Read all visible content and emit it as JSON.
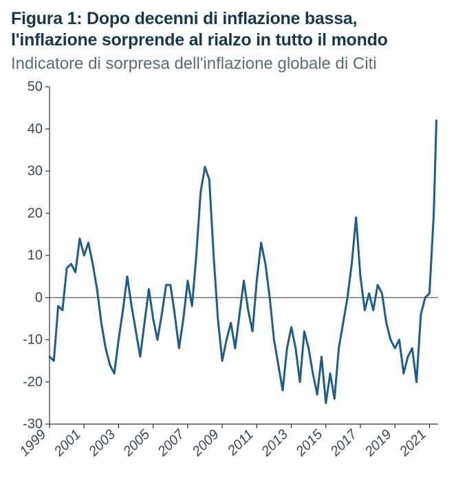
{
  "header": {
    "title_line1": "Figura 1: Dopo decenni di inflazione bassa,",
    "title_line2": "l'inflazione sorprende al rialzo in tutto il mondo",
    "subtitle": "Indicatore di sorpresa dell'inflazione globale di Citi",
    "title_color": "#16394f",
    "title_fontsize": 25,
    "subtitle_color": "#5a6c78",
    "subtitle_fontsize": 24
  },
  "chart": {
    "type": "line",
    "background_color": "#ffffff",
    "axis_color": "#333333",
    "axis_stroke_width": 1.2,
    "zero_line_color": "#333333",
    "zero_line_width": 0.9,
    "line_color": "#1c5c8e",
    "line_width": 3,
    "tick_label_color": "#3a4a55",
    "tick_label_fontsize": 20,
    "ylim": [
      -30,
      50
    ],
    "ytick_step": 10,
    "yticks": [
      -30,
      -20,
      -10,
      0,
      10,
      20,
      30,
      40,
      50
    ],
    "x_range": [
      1999,
      2021.5
    ],
    "xticks": [
      1999,
      2001,
      2003,
      2005,
      2007,
      2009,
      2011,
      2013,
      2015,
      2017,
      2019,
      2021
    ],
    "xtick_rotation": -45,
    "series": [
      [
        1999.0,
        -14
      ],
      [
        1999.25,
        -15
      ],
      [
        1999.5,
        -2
      ],
      [
        1999.75,
        -3
      ],
      [
        2000.0,
        7
      ],
      [
        2000.25,
        8
      ],
      [
        2000.5,
        6
      ],
      [
        2000.75,
        14
      ],
      [
        2001.0,
        10
      ],
      [
        2001.25,
        13
      ],
      [
        2001.5,
        8
      ],
      [
        2001.75,
        2
      ],
      [
        2002.0,
        -6
      ],
      [
        2002.25,
        -12
      ],
      [
        2002.5,
        -16
      ],
      [
        2002.75,
        -18
      ],
      [
        2003.0,
        -10
      ],
      [
        2003.25,
        -3
      ],
      [
        2003.5,
        5
      ],
      [
        2003.75,
        -2
      ],
      [
        2004.0,
        -8
      ],
      [
        2004.25,
        -14
      ],
      [
        2004.5,
        -6
      ],
      [
        2004.75,
        2
      ],
      [
        2005.0,
        -5
      ],
      [
        2005.25,
        -10
      ],
      [
        2005.5,
        -4
      ],
      [
        2005.75,
        3
      ],
      [
        2006.0,
        3
      ],
      [
        2006.25,
        -4
      ],
      [
        2006.5,
        -12
      ],
      [
        2006.75,
        -5
      ],
      [
        2007.0,
        4
      ],
      [
        2007.25,
        -2
      ],
      [
        2007.5,
        10
      ],
      [
        2007.75,
        25
      ],
      [
        2008.0,
        31
      ],
      [
        2008.25,
        28
      ],
      [
        2008.5,
        10
      ],
      [
        2008.75,
        -5
      ],
      [
        2009.0,
        -15
      ],
      [
        2009.25,
        -10
      ],
      [
        2009.5,
        -6
      ],
      [
        2009.75,
        -12
      ],
      [
        2010.0,
        -4
      ],
      [
        2010.25,
        4
      ],
      [
        2010.5,
        -3
      ],
      [
        2010.75,
        -8
      ],
      [
        2011.0,
        4
      ],
      [
        2011.25,
        13
      ],
      [
        2011.5,
        8
      ],
      [
        2011.75,
        0
      ],
      [
        2012.0,
        -10
      ],
      [
        2012.25,
        -16
      ],
      [
        2012.5,
        -22
      ],
      [
        2012.75,
        -12
      ],
      [
        2013.0,
        -7
      ],
      [
        2013.25,
        -12
      ],
      [
        2013.5,
        -20
      ],
      [
        2013.75,
        -8
      ],
      [
        2014.0,
        -12
      ],
      [
        2014.25,
        -18
      ],
      [
        2014.5,
        -23
      ],
      [
        2014.75,
        -14
      ],
      [
        2015.0,
        -25
      ],
      [
        2015.25,
        -18
      ],
      [
        2015.5,
        -24
      ],
      [
        2015.75,
        -12
      ],
      [
        2016.0,
        -6
      ],
      [
        2016.25,
        0
      ],
      [
        2016.5,
        8
      ],
      [
        2016.75,
        19
      ],
      [
        2017.0,
        5
      ],
      [
        2017.25,
        -3
      ],
      [
        2017.5,
        1
      ],
      [
        2017.75,
        -3
      ],
      [
        2018.0,
        3
      ],
      [
        2018.25,
        1
      ],
      [
        2018.5,
        -6
      ],
      [
        2018.75,
        -10
      ],
      [
        2019.0,
        -12
      ],
      [
        2019.25,
        -10
      ],
      [
        2019.5,
        -18
      ],
      [
        2019.75,
        -14
      ],
      [
        2020.0,
        -12
      ],
      [
        2020.25,
        -20
      ],
      [
        2020.5,
        -4
      ],
      [
        2020.75,
        0
      ],
      [
        2021.0,
        1
      ],
      [
        2021.25,
        20
      ],
      [
        2021.4,
        42
      ]
    ]
  }
}
